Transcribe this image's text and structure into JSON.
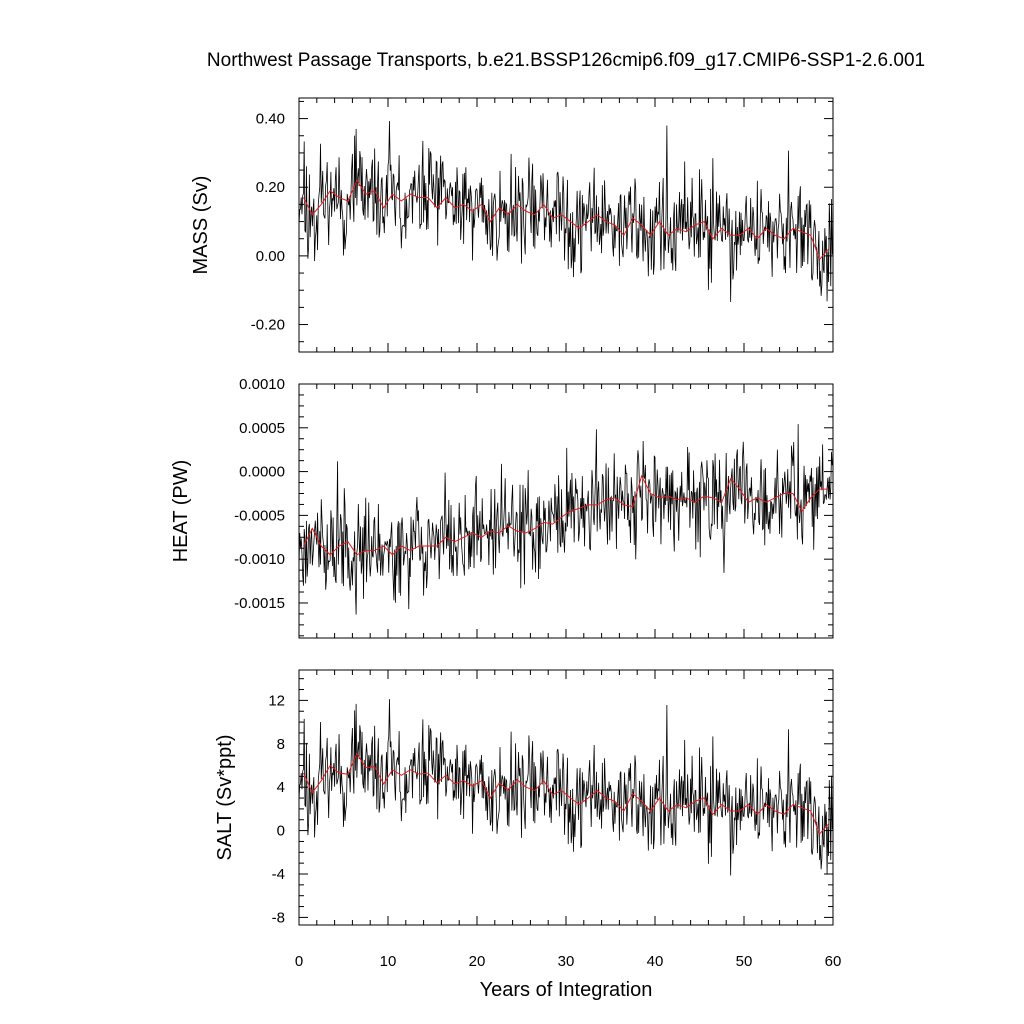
{
  "page_title": "Northwest Passage Transports, b.e21.BSSP126cmip6.f09_g17.CMIP6-SSP1-2.6.001",
  "chart_data": {
    "type": "line",
    "title": "Northwest Passage Transports, b.e21.BSSP126cmip6.f09_g17.CMIP6-SSP1-2.6.001",
    "xlabel": "Years of Integration",
    "xlim": [
      0,
      60
    ],
    "xticks": [
      0,
      10,
      20,
      30,
      40,
      50,
      60
    ],
    "xtick_labels": [
      "0",
      "10",
      "20",
      "30",
      "40",
      "50",
      "60"
    ],
    "series_colors": {
      "monthly": "#000000",
      "annual_mean": "#e41a1c"
    },
    "panels": [
      {
        "ylabel": "MASS (Sv)",
        "ylim": [
          -0.28,
          0.46
        ],
        "yticks": [
          -0.2,
          0.0,
          0.2,
          0.4
        ],
        "ytick_labels": [
          "-0.20",
          "0.00",
          "0.20",
          "0.40"
        ],
        "annual_x": [
          0.5,
          1.5,
          2.5,
          3.5,
          4.5,
          5.5,
          6.5,
          7.5,
          8.5,
          9.5,
          10.5,
          11.5,
          12.5,
          13.5,
          14.5,
          15.5,
          16.5,
          17.5,
          18.5,
          19.5,
          20.5,
          21.5,
          22.5,
          23.5,
          24.5,
          25.5,
          26.5,
          27.5,
          28.5,
          29.5,
          30.5,
          31.5,
          32.5,
          33.5,
          34.5,
          35.5,
          36.5,
          37.5,
          38.5,
          39.5,
          40.5,
          41.5,
          42.5,
          43.5,
          44.5,
          45.5,
          46.5,
          47.5,
          48.5,
          49.5,
          50.5,
          51.5,
          52.5,
          53.5,
          54.5,
          55.5,
          56.5,
          57.5,
          58.5,
          59.5
        ],
        "annual_mean": [
          0.17,
          0.12,
          0.15,
          0.19,
          0.17,
          0.16,
          0.22,
          0.18,
          0.19,
          0.14,
          0.18,
          0.16,
          0.18,
          0.17,
          0.17,
          0.14,
          0.17,
          0.14,
          0.15,
          0.13,
          0.15,
          0.1,
          0.14,
          0.12,
          0.15,
          0.13,
          0.12,
          0.15,
          0.11,
          0.12,
          0.1,
          0.08,
          0.1,
          0.12,
          0.1,
          0.09,
          0.06,
          0.11,
          0.09,
          0.06,
          0.1,
          0.06,
          0.08,
          0.07,
          0.09,
          0.1,
          0.05,
          0.08,
          0.06,
          0.06,
          0.08,
          0.05,
          0.08,
          0.06,
          0.05,
          0.08,
          0.07,
          0.06,
          -0.01,
          0.02
        ],
        "monthly_seed": 11,
        "monthly_noise": 0.085
      },
      {
        "ylabel": "HEAT (PW)",
        "ylim": [
          -0.0019,
          0.001
        ],
        "yticks": [
          -0.0015,
          -0.001,
          -0.0005,
          0.0,
          0.0005,
          0.001
        ],
        "ytick_labels": [
          "-0.0015",
          "-0.0010",
          "-0.0005",
          "0.0000",
          "0.0005",
          "0.0010"
        ],
        "annual_x": [
          0.5,
          1.5,
          2.5,
          3.5,
          4.5,
          5.5,
          6.5,
          7.5,
          8.5,
          9.5,
          10.5,
          11.5,
          12.5,
          13.5,
          14.5,
          15.5,
          16.5,
          17.5,
          18.5,
          19.5,
          20.5,
          21.5,
          22.5,
          23.5,
          24.5,
          25.5,
          26.5,
          27.5,
          28.5,
          29.5,
          30.5,
          31.5,
          32.5,
          33.5,
          34.5,
          35.5,
          36.5,
          37.5,
          38.5,
          39.5,
          40.5,
          41.5,
          42.5,
          43.5,
          44.5,
          45.5,
          46.5,
          47.5,
          48.5,
          49.5,
          50.5,
          51.5,
          52.5,
          53.5,
          54.5,
          55.5,
          56.5,
          57.5,
          58.5,
          59.5
        ],
        "annual_mean": [
          -0.00085,
          -0.00065,
          -0.00085,
          -0.00095,
          -0.00085,
          -0.0008,
          -0.00095,
          -0.0009,
          -0.0009,
          -0.00085,
          -0.00095,
          -0.00085,
          -0.0009,
          -0.00085,
          -0.00085,
          -0.00085,
          -0.00075,
          -0.0008,
          -0.00075,
          -0.0007,
          -0.00075,
          -0.00068,
          -0.0007,
          -0.00062,
          -0.00068,
          -0.0007,
          -0.00065,
          -0.00058,
          -0.0006,
          -0.00052,
          -0.00045,
          -0.00042,
          -0.00038,
          -0.00038,
          -0.00032,
          -0.0003,
          -0.00038,
          -0.0004,
          -5e-05,
          -0.00025,
          -0.0003,
          -0.00028,
          -0.00032,
          -0.0003,
          -0.00035,
          -0.00028,
          -0.0003,
          -0.00035,
          -8e-05,
          -0.0002,
          -0.00035,
          -0.0003,
          -0.00035,
          -0.0003,
          -0.00025,
          -0.00025,
          -0.00045,
          -0.0003,
          -0.0002,
          -0.0002
        ],
        "monthly_seed": 23,
        "monthly_noise": 0.00032
      },
      {
        "ylabel": "SALT (Sv*ppt)",
        "ylim": [
          -8.7,
          14.8
        ],
        "yticks": [
          -8,
          -4,
          0,
          4,
          8,
          12
        ],
        "ytick_labels": [
          "-8",
          "-4",
          "0",
          "4",
          "8",
          "12"
        ],
        "annual_x": [
          0.5,
          1.5,
          2.5,
          3.5,
          4.5,
          5.5,
          6.5,
          7.5,
          8.5,
          9.5,
          10.5,
          11.5,
          12.5,
          13.5,
          14.5,
          15.5,
          16.5,
          17.5,
          18.5,
          19.5,
          20.5,
          21.5,
          22.5,
          23.5,
          24.5,
          25.5,
          26.5,
          27.5,
          28.5,
          29.5,
          30.5,
          31.5,
          32.5,
          33.5,
          34.5,
          35.5,
          36.5,
          37.5,
          38.5,
          39.5,
          40.5,
          41.5,
          42.5,
          43.5,
          44.5,
          45.5,
          46.5,
          47.5,
          48.5,
          49.5,
          50.5,
          51.5,
          52.5,
          53.5,
          54.5,
          55.5,
          56.5,
          57.5,
          58.5,
          59.5
        ],
        "annual_mean": [
          5.3,
          3.5,
          4.6,
          6.0,
          5.3,
          5.2,
          7.1,
          5.8,
          5.9,
          4.3,
          5.6,
          5.1,
          5.6,
          5.2,
          5.3,
          4.4,
          5.1,
          4.3,
          4.6,
          4.1,
          4.6,
          3.0,
          4.4,
          3.7,
          4.7,
          4.0,
          3.7,
          4.6,
          3.3,
          3.7,
          3.0,
          2.4,
          3.0,
          3.7,
          3.0,
          2.7,
          1.8,
          3.4,
          2.7,
          1.8,
          3.0,
          1.8,
          2.4,
          2.1,
          2.7,
          3.0,
          1.5,
          2.4,
          1.8,
          1.8,
          2.4,
          1.5,
          2.4,
          1.8,
          1.5,
          2.4,
          2.1,
          1.8,
          -0.3,
          0.6
        ],
        "monthly_seed": 11,
        "monthly_noise": 2.6
      }
    ]
  }
}
